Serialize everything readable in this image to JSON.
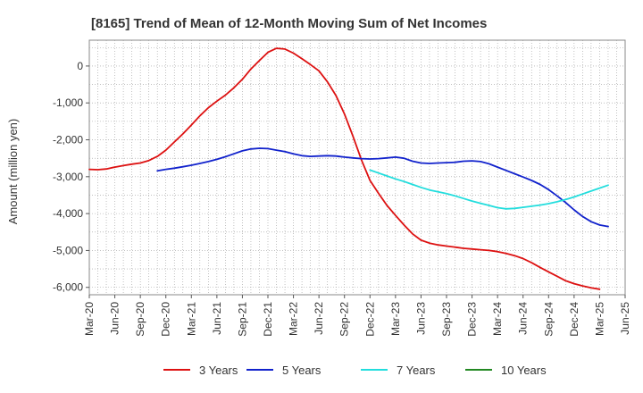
{
  "chart_data": {
    "type": "line",
    "title": "[8165]  Trend of Mean of 12-Month Moving Sum of Net Incomes",
    "xlabel": "",
    "ylabel": "Amount (million yen)",
    "ylim": [
      -6200,
      700
    ],
    "yticks": [
      0,
      -1000,
      -2000,
      -3000,
      -4000,
      -5000,
      -6000
    ],
    "ytick_labels": [
      "0",
      "-1,000",
      "-2,000",
      "-3,000",
      "-4,000",
      "-5,000",
      "-6,000"
    ],
    "x_range": [
      "2020-03",
      "2025-06"
    ],
    "xtick_labels": [
      "Mar-20",
      "Jun-20",
      "Sep-20",
      "Dec-20",
      "Mar-21",
      "Jun-21",
      "Sep-21",
      "Dec-21",
      "Mar-22",
      "Jun-22",
      "Sep-22",
      "Dec-22",
      "Mar-23",
      "Jun-23",
      "Sep-23",
      "Dec-23",
      "Mar-24",
      "Jun-24",
      "Sep-24",
      "Dec-24",
      "Mar-25",
      "Jun-25"
    ],
    "grid": true,
    "legend_position": "bottom",
    "series": [
      {
        "name": "3 Years",
        "color": "#dd1111",
        "points": [
          [
            "2020-03",
            -2800
          ],
          [
            "2020-04",
            -2810
          ],
          [
            "2020-05",
            -2790
          ],
          [
            "2020-06",
            -2740
          ],
          [
            "2020-07",
            -2700
          ],
          [
            "2020-08",
            -2660
          ],
          [
            "2020-09",
            -2630
          ],
          [
            "2020-10",
            -2560
          ],
          [
            "2020-11",
            -2450
          ],
          [
            "2020-12",
            -2280
          ],
          [
            "2021-01",
            -2060
          ],
          [
            "2021-02",
            -1840
          ],
          [
            "2021-03",
            -1600
          ],
          [
            "2021-04",
            -1350
          ],
          [
            "2021-05",
            -1130
          ],
          [
            "2021-06",
            -950
          ],
          [
            "2021-07",
            -790
          ],
          [
            "2021-08",
            -590
          ],
          [
            "2021-09",
            -360
          ],
          [
            "2021-10",
            -80
          ],
          [
            "2021-11",
            150
          ],
          [
            "2021-12",
            370
          ],
          [
            "2022-01",
            480
          ],
          [
            "2022-02",
            460
          ],
          [
            "2022-03",
            350
          ],
          [
            "2022-04",
            200
          ],
          [
            "2022-05",
            40
          ],
          [
            "2022-06",
            -130
          ],
          [
            "2022-07",
            -430
          ],
          [
            "2022-08",
            -800
          ],
          [
            "2022-09",
            -1300
          ],
          [
            "2022-10",
            -1900
          ],
          [
            "2022-11",
            -2550
          ],
          [
            "2022-12",
            -3100
          ],
          [
            "2023-01",
            -3450
          ],
          [
            "2023-02",
            -3780
          ],
          [
            "2023-03",
            -4050
          ],
          [
            "2023-04",
            -4310
          ],
          [
            "2023-05",
            -4550
          ],
          [
            "2023-06",
            -4720
          ],
          [
            "2023-07",
            -4800
          ],
          [
            "2023-08",
            -4850
          ],
          [
            "2023-09",
            -4880
          ],
          [
            "2023-10",
            -4910
          ],
          [
            "2023-11",
            -4940
          ],
          [
            "2023-12",
            -4960
          ],
          [
            "2024-01",
            -4980
          ],
          [
            "2024-02",
            -5000
          ],
          [
            "2024-03",
            -5030
          ],
          [
            "2024-04",
            -5080
          ],
          [
            "2024-05",
            -5140
          ],
          [
            "2024-06",
            -5220
          ],
          [
            "2024-07",
            -5330
          ],
          [
            "2024-08",
            -5460
          ],
          [
            "2024-09",
            -5580
          ],
          [
            "2024-10",
            -5700
          ],
          [
            "2024-11",
            -5820
          ],
          [
            "2024-12",
            -5900
          ],
          [
            "2025-01",
            -5960
          ],
          [
            "2025-02",
            -6010
          ],
          [
            "2025-03",
            -6050
          ]
        ]
      },
      {
        "name": "5 Years",
        "color": "#1122cc",
        "points": [
          [
            "2020-11",
            -2840
          ],
          [
            "2020-12",
            -2800
          ],
          [
            "2021-01",
            -2770
          ],
          [
            "2021-02",
            -2730
          ],
          [
            "2021-03",
            -2690
          ],
          [
            "2021-04",
            -2640
          ],
          [
            "2021-05",
            -2590
          ],
          [
            "2021-06",
            -2530
          ],
          [
            "2021-07",
            -2460
          ],
          [
            "2021-08",
            -2380
          ],
          [
            "2021-09",
            -2300
          ],
          [
            "2021-10",
            -2250
          ],
          [
            "2021-11",
            -2230
          ],
          [
            "2021-12",
            -2240
          ],
          [
            "2022-01",
            -2280
          ],
          [
            "2022-02",
            -2320
          ],
          [
            "2022-03",
            -2380
          ],
          [
            "2022-04",
            -2430
          ],
          [
            "2022-05",
            -2450
          ],
          [
            "2022-06",
            -2440
          ],
          [
            "2022-07",
            -2430
          ],
          [
            "2022-08",
            -2440
          ],
          [
            "2022-09",
            -2470
          ],
          [
            "2022-10",
            -2490
          ],
          [
            "2022-11",
            -2510
          ],
          [
            "2022-12",
            -2520
          ],
          [
            "2023-01",
            -2510
          ],
          [
            "2023-02",
            -2490
          ],
          [
            "2023-03",
            -2470
          ],
          [
            "2023-04",
            -2500
          ],
          [
            "2023-05",
            -2580
          ],
          [
            "2023-06",
            -2630
          ],
          [
            "2023-07",
            -2640
          ],
          [
            "2023-08",
            -2630
          ],
          [
            "2023-09",
            -2620
          ],
          [
            "2023-10",
            -2610
          ],
          [
            "2023-11",
            -2580
          ],
          [
            "2023-12",
            -2570
          ],
          [
            "2024-01",
            -2590
          ],
          [
            "2024-02",
            -2650
          ],
          [
            "2024-03",
            -2740
          ],
          [
            "2024-04",
            -2830
          ],
          [
            "2024-05",
            -2920
          ],
          [
            "2024-06",
            -3010
          ],
          [
            "2024-07",
            -3100
          ],
          [
            "2024-08",
            -3210
          ],
          [
            "2024-09",
            -3350
          ],
          [
            "2024-10",
            -3520
          ],
          [
            "2024-11",
            -3700
          ],
          [
            "2024-12",
            -3900
          ],
          [
            "2025-01",
            -4080
          ],
          [
            "2025-02",
            -4220
          ],
          [
            "2025-03",
            -4310
          ],
          [
            "2025-04",
            -4350
          ]
        ]
      },
      {
        "name": "7 Years",
        "color": "#22dddd",
        "points": [
          [
            "2022-12",
            -2820
          ],
          [
            "2023-01",
            -2900
          ],
          [
            "2023-02",
            -2980
          ],
          [
            "2023-03",
            -3060
          ],
          [
            "2023-04",
            -3130
          ],
          [
            "2023-05",
            -3210
          ],
          [
            "2023-06",
            -3290
          ],
          [
            "2023-07",
            -3360
          ],
          [
            "2023-08",
            -3410
          ],
          [
            "2023-09",
            -3460
          ],
          [
            "2023-10",
            -3520
          ],
          [
            "2023-11",
            -3590
          ],
          [
            "2023-12",
            -3660
          ],
          [
            "2024-01",
            -3720
          ],
          [
            "2024-02",
            -3780
          ],
          [
            "2024-03",
            -3840
          ],
          [
            "2024-04",
            -3870
          ],
          [
            "2024-05",
            -3860
          ],
          [
            "2024-06",
            -3830
          ],
          [
            "2024-07",
            -3800
          ],
          [
            "2024-08",
            -3770
          ],
          [
            "2024-09",
            -3730
          ],
          [
            "2024-10",
            -3680
          ],
          [
            "2024-11",
            -3620
          ],
          [
            "2024-12",
            -3550
          ],
          [
            "2025-01",
            -3470
          ],
          [
            "2025-02",
            -3390
          ],
          [
            "2025-03",
            -3310
          ],
          [
            "2025-04",
            -3230
          ]
        ]
      },
      {
        "name": "10 Years",
        "color": "#228822",
        "points": []
      }
    ]
  }
}
